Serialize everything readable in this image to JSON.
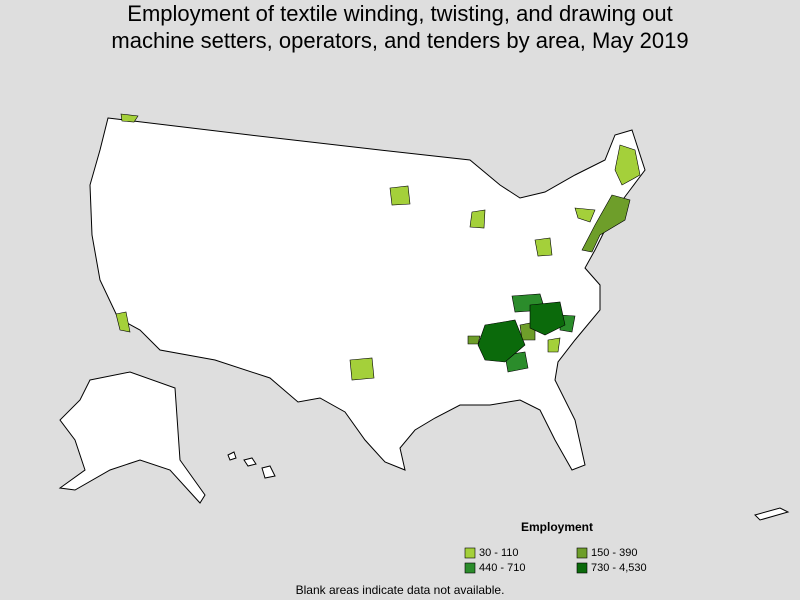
{
  "title": [
    "Employment of textile winding, twisting, and drawing out",
    "machine setters, operators, and tenders by area, May 2019"
  ],
  "legend": {
    "title": "Employment",
    "items": [
      {
        "label": "30 - 110",
        "color": "#a4d03a"
      },
      {
        "label": "150 - 390",
        "color": "#6e9e2a"
      },
      {
        "label": "440 - 710",
        "color": "#2b8c2b"
      },
      {
        "label": "730 - 4,530",
        "color": "#0b6a0b"
      }
    ]
  },
  "footnote": "Blank areas indicate data not available."
}
